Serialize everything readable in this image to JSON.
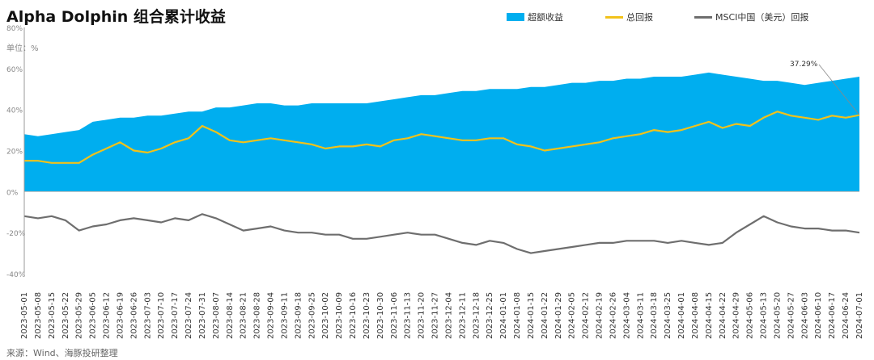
{
  "chart_data": {
    "type": "area",
    "title": "Alpha Dolphin 组合累计收益",
    "unit_label": "单位：%",
    "source": "来源：Wind、海豚投研整理",
    "ylim": [
      -40,
      80
    ],
    "yticks": [
      "80%",
      "60%",
      "40%",
      "20%",
      "0%",
      "-20%",
      "-40%"
    ],
    "ytick_values": [
      80,
      60,
      40,
      20,
      0,
      -20,
      -40
    ],
    "annotation": {
      "text": "37.29%",
      "series": "总回报"
    },
    "x": [
      "2023-05-01",
      "2023-05-08",
      "2023-05-15",
      "2023-05-22",
      "2023-05-29",
      "2023-06-05",
      "2023-06-12",
      "2023-06-19",
      "2023-06-26",
      "2023-07-03",
      "2023-07-10",
      "2023-07-17",
      "2023-07-24",
      "2023-07-31",
      "2023-08-07",
      "2023-08-14",
      "2023-08-21",
      "2023-08-28",
      "2023-09-04",
      "2023-09-11",
      "2023-09-18",
      "2023-09-25",
      "2023-10-02",
      "2023-10-09",
      "2023-10-16",
      "2023-10-23",
      "2023-10-30",
      "2023-11-06",
      "2023-11-13",
      "2023-11-20",
      "2023-11-27",
      "2023-12-04",
      "2023-12-11",
      "2023-12-18",
      "2023-12-25",
      "2024-01-01",
      "2024-01-08",
      "2024-01-15",
      "2024-01-22",
      "2024-01-29",
      "2024-02-05",
      "2024-02-12",
      "2024-02-19",
      "2024-02-26",
      "2024-03-04",
      "2024-03-11",
      "2024-03-18",
      "2024-03-25",
      "2024-04-01",
      "2024-04-08",
      "2024-04-15",
      "2024-04-22",
      "2024-04-29",
      "2024-05-06",
      "2024-05-13",
      "2024-05-20",
      "2024-05-27",
      "2024-06-03",
      "2024-06-10",
      "2024-06-17",
      "2024-06-24",
      "2024-07-01"
    ],
    "series": [
      {
        "name": "超额收益",
        "color": "#00aeef",
        "kind": "area",
        "values": [
          28,
          27,
          28,
          29,
          30,
          34,
          35,
          36,
          36,
          37,
          37,
          38,
          39,
          39,
          41,
          41,
          42,
          43,
          43,
          42,
          42,
          43,
          43,
          43,
          43,
          43,
          44,
          45,
          46,
          47,
          47,
          48,
          49,
          49,
          50,
          50,
          50,
          51,
          51,
          52,
          53,
          53,
          54,
          54,
          55,
          55,
          56,
          56,
          56,
          57,
          58,
          57,
          56,
          55,
          54,
          54,
          53,
          52,
          53,
          54,
          55,
          56
        ]
      },
      {
        "name": "总回报",
        "color": "#f2c21a",
        "kind": "line",
        "values": [
          15,
          15,
          14,
          14,
          14,
          18,
          21,
          24,
          20,
          19,
          21,
          24,
          26,
          32,
          29,
          25,
          24,
          25,
          26,
          25,
          24,
          23,
          21,
          22,
          22,
          23,
          22,
          25,
          26,
          28,
          27,
          26,
          25,
          25,
          26,
          26,
          23,
          22,
          20,
          21,
          22,
          23,
          24,
          26,
          27,
          28,
          30,
          29,
          30,
          32,
          34,
          31,
          33,
          32,
          36,
          39,
          37,
          36,
          35,
          37,
          36,
          37.29
        ]
      },
      {
        "name": "MSCI中国（美元）回报",
        "color": "#6e6e6e",
        "kind": "line",
        "values": [
          -12,
          -13,
          -12,
          -14,
          -19,
          -17,
          -16,
          -14,
          -13,
          -14,
          -15,
          -13,
          -14,
          -11,
          -13,
          -16,
          -19,
          -18,
          -17,
          -19,
          -20,
          -20,
          -21,
          -21,
          -23,
          -23,
          -22,
          -21,
          -20,
          -21,
          -21,
          -23,
          -25,
          -26,
          -24,
          -25,
          -28,
          -30,
          -29,
          -28,
          -27,
          -26,
          -25,
          -25,
          -24,
          -24,
          -24,
          -25,
          -24,
          -25,
          -26,
          -25,
          -20,
          -16,
          -12,
          -15,
          -17,
          -18,
          -18,
          -19,
          -19,
          -20
        ]
      }
    ]
  }
}
